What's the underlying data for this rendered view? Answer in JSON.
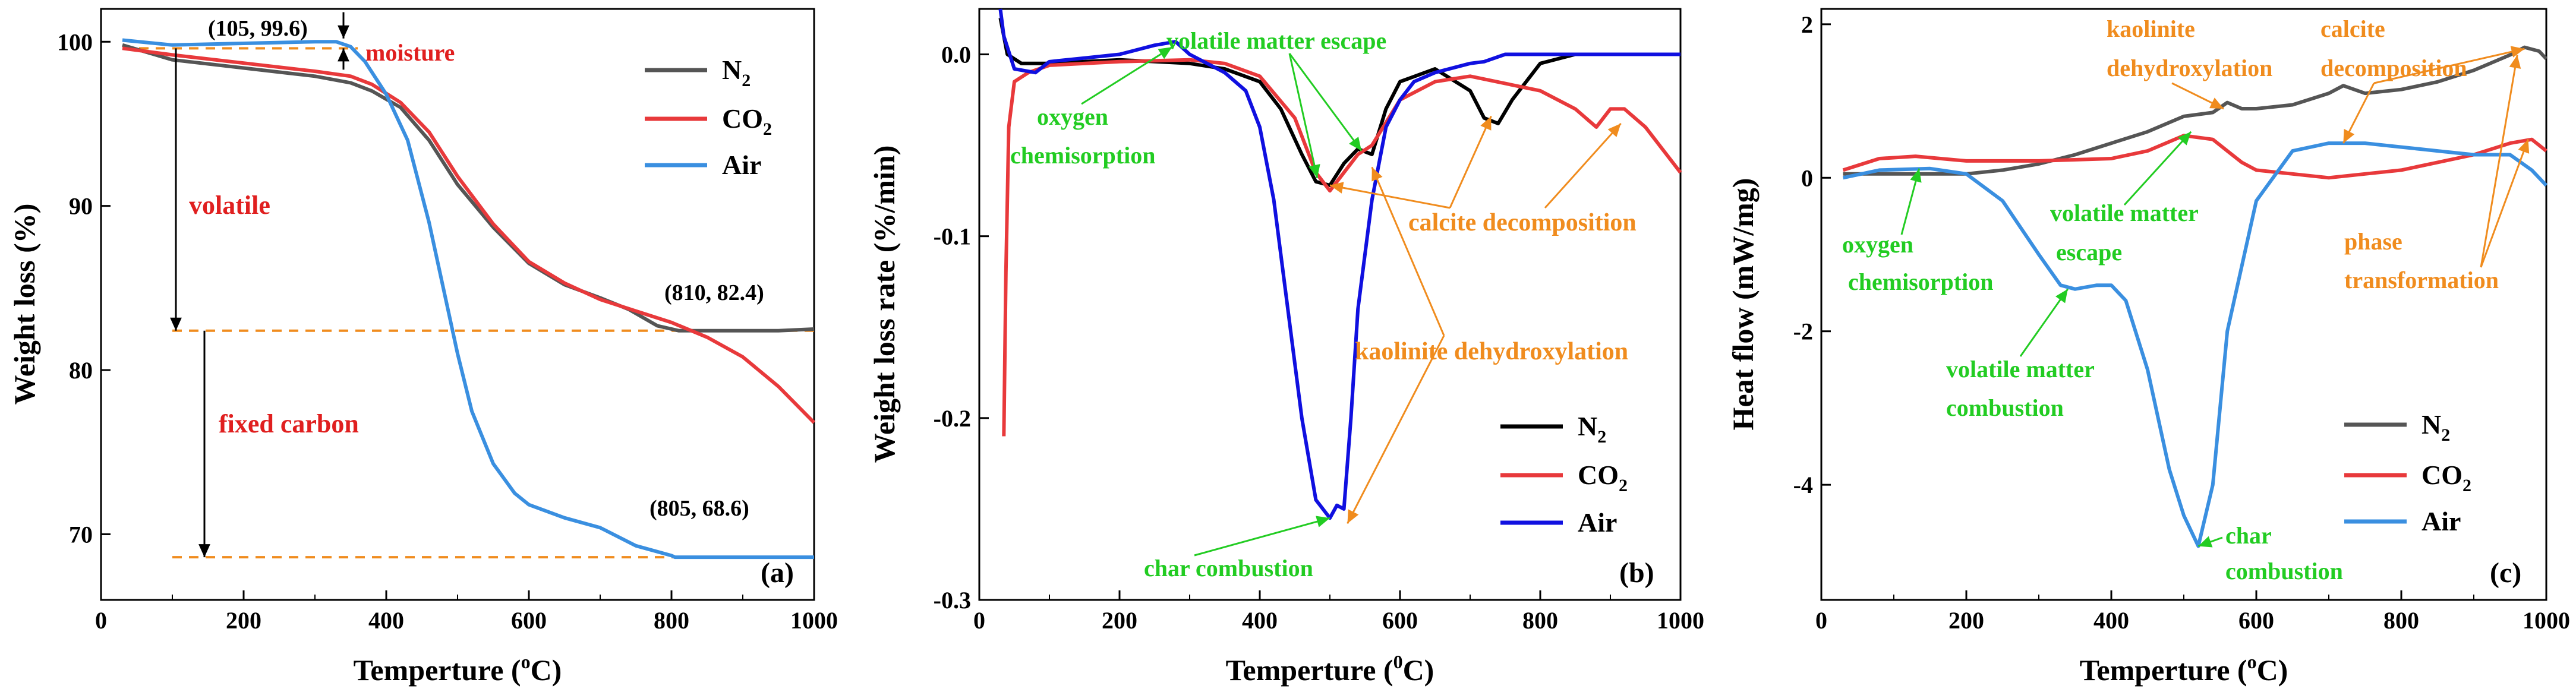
{
  "figure": {
    "colors": {
      "N2": "#555555",
      "CO2": "#e8393b",
      "Air": "#3a8fe0",
      "N2_b": "#000000",
      "Air_b": "#1010e0",
      "ref": "#f08c1e",
      "red_text": "#e01f1f",
      "green_text": "#22cc22",
      "orange_text": "#f08c1e"
    }
  },
  "chart_data": [
    {
      "id": "a",
      "type": "line",
      "panel_label": "(a)",
      "xlabel_pre": "Temperture (",
      "xlabel_unit": "o",
      "xlabel_post": "C)",
      "ylabel": "Weight loss (%)",
      "xlim": [
        0,
        1000
      ],
      "ylim": [
        66,
        102
      ],
      "xticks": [
        0,
        200,
        400,
        600,
        800,
        1000
      ],
      "yticks": [
        70,
        80,
        90,
        100
      ],
      "legend": [
        {
          "series": "N2",
          "label": "N",
          "sub": "2"
        },
        {
          "series": "CO2",
          "label": "CO",
          "sub": "2"
        },
        {
          "series": "Air",
          "label": "Air",
          "sub": ""
        }
      ],
      "series": [
        {
          "name": "N2",
          "x": [
            30,
            100,
            200,
            300,
            350,
            380,
            420,
            460,
            500,
            550,
            600,
            650,
            700,
            740,
            780,
            810,
            850,
            900,
            950,
            1000
          ],
          "y": [
            99.8,
            98.9,
            98.4,
            97.9,
            97.5,
            97.0,
            96.0,
            94.0,
            91.3,
            88.7,
            86.5,
            85.2,
            84.4,
            83.7,
            82.7,
            82.4,
            82.4,
            82.4,
            82.4,
            82.5
          ]
        },
        {
          "name": "CO2",
          "x": [
            30,
            100,
            200,
            300,
            350,
            380,
            420,
            460,
            500,
            550,
            600,
            650,
            700,
            750,
            800,
            850,
            900,
            950,
            1000
          ],
          "y": [
            99.6,
            99.2,
            98.7,
            98.2,
            97.9,
            97.4,
            96.3,
            94.5,
            91.8,
            88.9,
            86.6,
            85.3,
            84.3,
            83.6,
            82.9,
            82.0,
            80.8,
            79.0,
            76.8
          ]
        },
        {
          "name": "Air",
          "x": [
            30,
            100,
            200,
            300,
            330,
            350,
            370,
            400,
            430,
            460,
            480,
            500,
            520,
            550,
            580,
            600,
            650,
            700,
            750,
            800,
            805,
            850,
            900,
            1000
          ],
          "y": [
            100.1,
            99.8,
            99.9,
            100.0,
            100.0,
            99.7,
            98.8,
            96.8,
            94.0,
            89.0,
            85.0,
            81.0,
            77.5,
            74.3,
            72.5,
            71.8,
            71.0,
            70.4,
            69.3,
            68.7,
            68.6,
            68.6,
            68.6,
            68.6
          ]
        }
      ],
      "annotations": {
        "pt1": "(105, 99.6)",
        "pt2": "(810, 82.4)",
        "pt3": "(805, 68.6)",
        "moisture": "moisture",
        "volatile": "volatile",
        "fixed_carbon": "fixed carbon"
      }
    },
    {
      "id": "b",
      "type": "line",
      "panel_label": "(b)",
      "xlabel_pre": "Temperture (",
      "xlabel_unit": "0",
      "xlabel_post": "C)",
      "ylabel": "Weight loss rate (%/min)",
      "xlim": [
        0,
        1000
      ],
      "ylim": [
        -0.3,
        0.025
      ],
      "xticks": [
        0,
        200,
        400,
        600,
        800,
        1000
      ],
      "yticks": [
        -0.3,
        -0.2,
        -0.1,
        0.0
      ],
      "ytick_labels": [
        "-0.3",
        "-0.2",
        "-0.1",
        "0.0"
      ],
      "legend": [
        {
          "series": "N2",
          "label": "N",
          "sub": "2"
        },
        {
          "series": "CO2",
          "label": "CO",
          "sub": "2"
        },
        {
          "series": "Air",
          "label": "Air",
          "sub": ""
        }
      ],
      "series": [
        {
          "name": "N2",
          "x": [
            30,
            40,
            60,
            100,
            200,
            300,
            350,
            400,
            430,
            460,
            480,
            500,
            520,
            540,
            560,
            580,
            600,
            650,
            700,
            720,
            740,
            760,
            800,
            850,
            900,
            1000
          ],
          "y": [
            0.02,
            0.0,
            -0.005,
            -0.005,
            -0.003,
            -0.005,
            -0.008,
            -0.015,
            -0.03,
            -0.055,
            -0.07,
            -0.072,
            -0.06,
            -0.052,
            -0.055,
            -0.03,
            -0.015,
            -0.008,
            -0.02,
            -0.035,
            -0.038,
            -0.025,
            -0.005,
            0.0,
            0.0,
            0.0
          ]
        },
        {
          "name": "CO2",
          "x": [
            35,
            38,
            42,
            50,
            70,
            100,
            200,
            300,
            350,
            400,
            450,
            480,
            500,
            520,
            540,
            560,
            600,
            650,
            700,
            800,
            850,
            880,
            900,
            920,
            950,
            1000
          ],
          "y": [
            -0.21,
            -0.12,
            -0.04,
            -0.015,
            -0.01,
            -0.006,
            -0.004,
            -0.003,
            -0.005,
            -0.012,
            -0.035,
            -0.065,
            -0.075,
            -0.065,
            -0.055,
            -0.05,
            -0.025,
            -0.015,
            -0.012,
            -0.02,
            -0.03,
            -0.04,
            -0.03,
            -0.03,
            -0.04,
            -0.065
          ]
        },
        {
          "name": "Air",
          "x": [
            30,
            35,
            50,
            80,
            100,
            150,
            200,
            250,
            280,
            300,
            350,
            380,
            400,
            420,
            440,
            460,
            480,
            500,
            510,
            520,
            530,
            540,
            560,
            580,
            600,
            620,
            650,
            700,
            720,
            750,
            800,
            900,
            1000
          ],
          "y": [
            0.025,
            0.01,
            -0.008,
            -0.01,
            -0.004,
            -0.002,
            0.0,
            0.005,
            0.007,
            0.0,
            -0.01,
            -0.02,
            -0.04,
            -0.08,
            -0.14,
            -0.2,
            -0.245,
            -0.255,
            -0.248,
            -0.25,
            -0.2,
            -0.14,
            -0.08,
            -0.04,
            -0.025,
            -0.015,
            -0.01,
            -0.005,
            -0.004,
            0.0,
            0.0,
            0.0,
            0.0
          ]
        }
      ],
      "annotations": {
        "volatile": "volatile matter escape",
        "oxygen_1": "oxygen",
        "oxygen_2": "chemisorption",
        "calcite": "calcite decomposition",
        "kaolinite": "kaolinite dehydroxylation",
        "char": "char combustion"
      }
    },
    {
      "id": "c",
      "type": "line",
      "panel_label": "(c)",
      "xlabel_pre": "Temperture (",
      "xlabel_unit": "o",
      "xlabel_post": "C)",
      "ylabel": "Heat flow (mW/mg)",
      "xlim": [
        0,
        1000
      ],
      "ylim": [
        -5.5,
        2.2
      ],
      "xticks": [
        0,
        200,
        400,
        600,
        800,
        1000
      ],
      "yticks": [
        -4,
        -2,
        0,
        2
      ],
      "legend": [
        {
          "series": "N2",
          "label": "N",
          "sub": "2"
        },
        {
          "series": "CO2",
          "label": "CO",
          "sub": "2"
        },
        {
          "series": "Air",
          "label": "Air",
          "sub": ""
        }
      ],
      "series": [
        {
          "name": "N2",
          "x": [
            30,
            100,
            200,
            250,
            300,
            350,
            400,
            450,
            500,
            540,
            560,
            580,
            600,
            650,
            700,
            720,
            750,
            800,
            850,
            900,
            950,
            970,
            990,
            1000
          ],
          "y": [
            0.05,
            0.05,
            0.05,
            0.1,
            0.18,
            0.3,
            0.45,
            0.6,
            0.8,
            0.85,
            0.98,
            0.9,
            0.9,
            0.95,
            1.1,
            1.2,
            1.1,
            1.15,
            1.25,
            1.4,
            1.6,
            1.7,
            1.65,
            1.55
          ]
        },
        {
          "name": "CO2",
          "x": [
            30,
            80,
            130,
            200,
            300,
            400,
            450,
            500,
            540,
            560,
            580,
            600,
            650,
            700,
            750,
            800,
            850,
            900,
            950,
            980,
            1000
          ],
          "y": [
            0.1,
            0.25,
            0.28,
            0.22,
            0.22,
            0.25,
            0.35,
            0.55,
            0.5,
            0.35,
            0.2,
            0.1,
            0.05,
            0.0,
            0.05,
            0.1,
            0.2,
            0.3,
            0.45,
            0.5,
            0.35
          ]
        },
        {
          "name": "Air",
          "x": [
            30,
            80,
            150,
            200,
            250,
            300,
            330,
            350,
            380,
            400,
            420,
            450,
            480,
            500,
            520,
            540,
            560,
            600,
            650,
            700,
            750,
            800,
            850,
            900,
            950,
            980,
            1000
          ],
          "y": [
            0.0,
            0.1,
            0.12,
            0.05,
            -0.3,
            -1.0,
            -1.4,
            -1.45,
            -1.4,
            -1.4,
            -1.6,
            -2.5,
            -3.8,
            -4.4,
            -4.8,
            -4.0,
            -2.0,
            -0.3,
            0.35,
            0.45,
            0.45,
            0.4,
            0.35,
            0.3,
            0.3,
            0.1,
            -0.1
          ]
        }
      ],
      "annotations": {
        "kaolinite_1": "kaolinite",
        "kaolinite_2": "dehydroxylation",
        "calcite_1": "calcite",
        "calcite_2": "decomposition",
        "volatile_escape_1": "volatile matter",
        "volatile_escape_2": "escape",
        "oxygen_1": "oxygen",
        "oxygen_2": "chemisorption",
        "phase_1": "phase",
        "phase_2": "transformation",
        "volatile_comb_1": "volatile matter",
        "volatile_comb_2": "combustion",
        "char_1": "char",
        "char_2": "combustion"
      }
    }
  ]
}
